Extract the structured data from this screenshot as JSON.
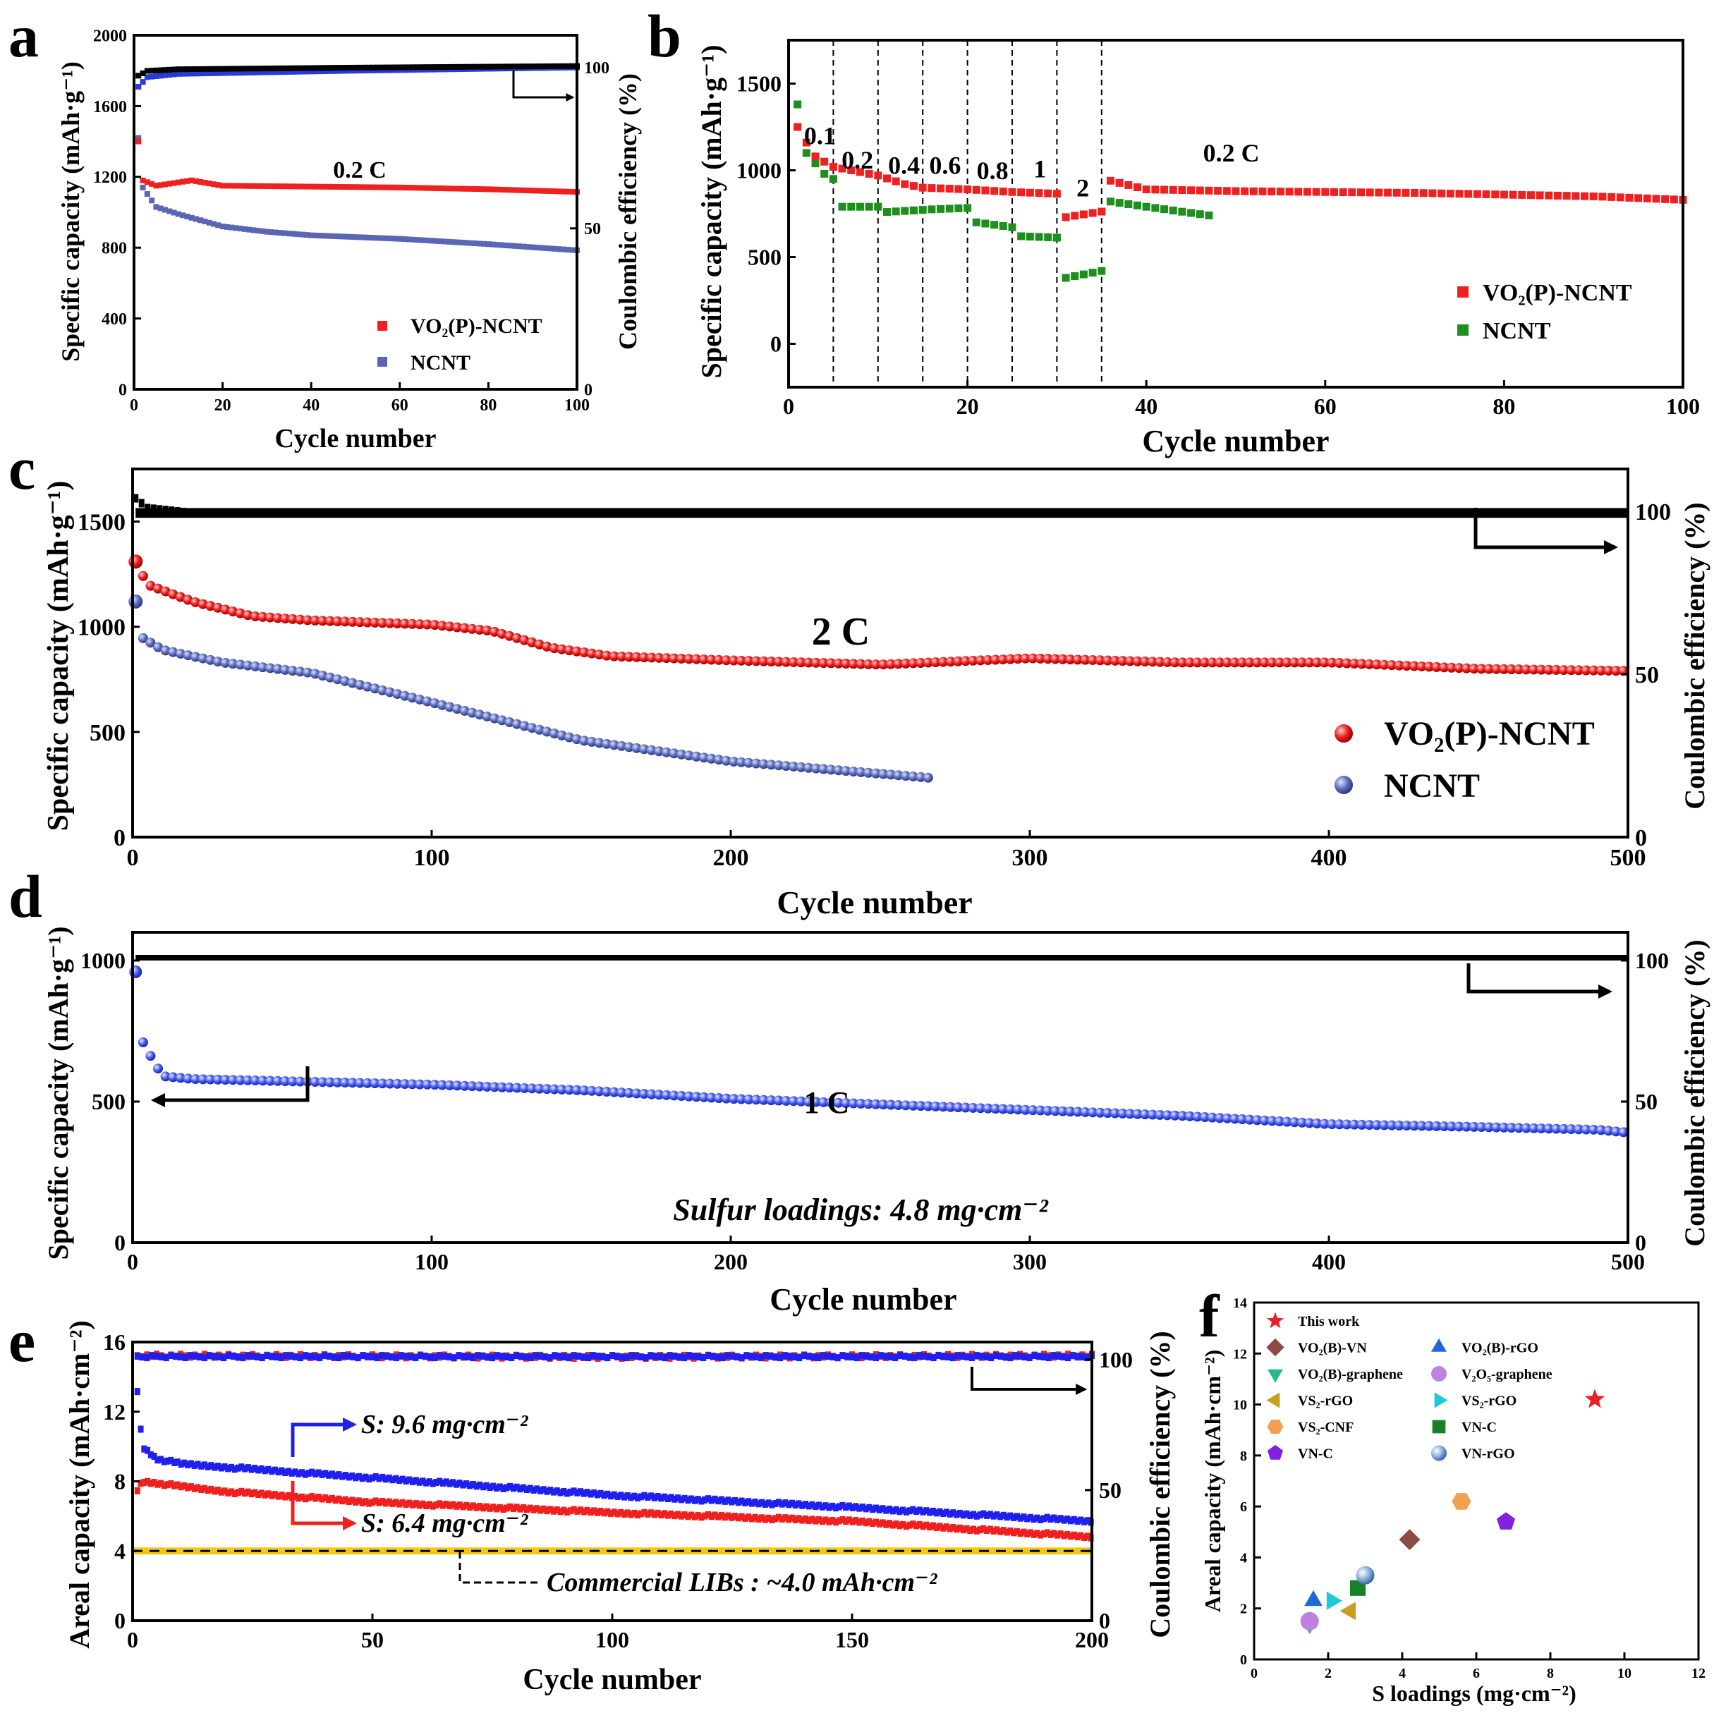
{
  "colors": {
    "red": "#f02020",
    "blue": "#2020ee",
    "navy": "#5a66b4",
    "green": "#1c8f1c",
    "black": "#000000",
    "gold": "#f2c811"
  },
  "chart_data": [
    {
      "id": "a",
      "type": "line",
      "panel_label": "a",
      "xlabel": "Cycle number",
      "ylabel": "Specific capacity (mAh·g⁻¹)",
      "y2label": "Coulombic efficiency (%)",
      "xlim": [
        0,
        100
      ],
      "ylim": [
        0,
        2000
      ],
      "y2lim": [
        0,
        110
      ],
      "xticks": [
        0,
        20,
        40,
        60,
        80,
        100
      ],
      "yticks": [
        0,
        400,
        800,
        1200,
        1600,
        2000
      ],
      "y2ticks": [
        0,
        50,
        100
      ],
      "annotation": "0.2 C",
      "legend": [
        "VO₂(P)-NCNT",
        "NCNT"
      ],
      "series": [
        {
          "name": "VO₂(P)-NCNT",
          "axis": "y",
          "x": [
            1,
            2,
            5,
            13,
            20,
            40,
            60,
            80,
            100
          ],
          "y": [
            1400,
            1180,
            1150,
            1180,
            1150,
            1145,
            1140,
            1130,
            1115
          ]
        },
        {
          "name": "NCNT",
          "axis": "y",
          "x": [
            1,
            2,
            5,
            10,
            20,
            30,
            40,
            60,
            80,
            100
          ],
          "y": [
            1420,
            1140,
            1030,
            990,
            920,
            890,
            870,
            850,
            820,
            785
          ]
        },
        {
          "name": "Coulombic efficiency (VO₂(P)-NCNT)",
          "axis": "y2",
          "x": [
            1,
            3,
            10,
            50,
            100
          ],
          "y": [
            97,
            98.5,
            99,
            99.5,
            100
          ]
        },
        {
          "name": "Coulombic efficiency (NCNT)",
          "axis": "y2",
          "x": [
            1,
            3,
            10,
            50,
            100
          ],
          "y": [
            94,
            97,
            98,
            99,
            100
          ]
        }
      ]
    },
    {
      "id": "b",
      "type": "scatter",
      "panel_label": "b",
      "xlabel": "Cycle number",
      "ylabel": "Specific capacity (mAh·g⁻¹)",
      "xlim": [
        0,
        100
      ],
      "ylim": [
        -250,
        1750
      ],
      "xticks": [
        0,
        20,
        40,
        60,
        80,
        100
      ],
      "yticks": [
        0,
        500,
        1000,
        1500
      ],
      "rate_labels": [
        "0.1",
        "0.2",
        "0.4",
        "0.6",
        "0.8",
        "1",
        "2",
        "0.2 C"
      ],
      "rate_boundaries": [
        5,
        10,
        15,
        20,
        25,
        30,
        35
      ],
      "legend": [
        "VO₂(P)-NCNT",
        "NCNT"
      ],
      "series": [
        {
          "name": "VO₂(P)-NCNT",
          "x": [
            1,
            2,
            3,
            4,
            5,
            8,
            10,
            13,
            15,
            20,
            25,
            30,
            31,
            35,
            36,
            40,
            50,
            70,
            90,
            100
          ],
          "y": [
            1250,
            1160,
            1080,
            1050,
            1020,
            990,
            970,
            920,
            900,
            890,
            875,
            865,
            730,
            760,
            940,
            890,
            880,
            870,
            850,
            830
          ]
        },
        {
          "name": "NCNT",
          "x": [
            1,
            2,
            3,
            4,
            5,
            6,
            10,
            11,
            15,
            20,
            21,
            25,
            26,
            30,
            31,
            35,
            36,
            40,
            47
          ],
          "y": [
            1380,
            1100,
            1040,
            980,
            950,
            790,
            790,
            760,
            760,
            780,
            700,
            670,
            620,
            610,
            380,
            420,
            820,
            790,
            740
          ]
        }
      ]
    },
    {
      "id": "c",
      "type": "scatter",
      "panel_label": "c",
      "xlabel": "Cycle number",
      "ylabel": "Specific capacity (mAh·g⁻¹)",
      "y2label": "Coulombic efficiency (%)",
      "xlim": [
        0,
        500
      ],
      "ylim": [
        0,
        1750
      ],
      "y2lim": [
        0,
        113
      ],
      "xticks": [
        0,
        100,
        200,
        300,
        400,
        500
      ],
      "yticks": [
        0,
        500,
        1000,
        1500
      ],
      "y2ticks": [
        0,
        50,
        100
      ],
      "annotation": "2 C",
      "legend": [
        "VO₂(P)-NCNT",
        "NCNT"
      ],
      "series": [
        {
          "name": "VO₂(P)-NCNT",
          "x": [
            1,
            5,
            20,
            40,
            60,
            100,
            120,
            140,
            160,
            200,
            250,
            300,
            350,
            400,
            450,
            500
          ],
          "y": [
            1310,
            1200,
            1120,
            1050,
            1030,
            1010,
            980,
            900,
            860,
            840,
            820,
            850,
            830,
            830,
            800,
            790
          ]
        },
        {
          "name": "NCNT",
          "x": [
            1,
            3,
            10,
            30,
            60,
            100,
            150,
            200,
            268
          ],
          "y": [
            1120,
            950,
            890,
            830,
            780,
            640,
            460,
            360,
            280
          ]
        },
        {
          "name": "Coulombic efficiency",
          "axis": "y2",
          "x": [
            1,
            5,
            20,
            100,
            150,
            300,
            500
          ],
          "y": [
            104,
            101,
            99.5,
            99,
            99,
            99.5,
            100
          ]
        }
      ]
    },
    {
      "id": "d",
      "type": "scatter",
      "panel_label": "d",
      "xlabel": "Cycle number",
      "ylabel": "Specific capacity (mAh·g⁻¹)",
      "y2label": "Coulombic efficiency (%)",
      "xlim": [
        0,
        500
      ],
      "ylim": [
        0,
        1100
      ],
      "y2lim": [
        0,
        110
      ],
      "xticks": [
        0,
        100,
        200,
        300,
        400,
        500
      ],
      "yticks": [
        0,
        500,
        1000
      ],
      "y2ticks": [
        0,
        50,
        100
      ],
      "annotation": "1 C",
      "note": "Sulfur loadings: 4.8  mg·cm⁻²",
      "series": [
        {
          "name": "Capacity",
          "x": [
            1,
            2,
            5,
            10,
            20,
            60,
            100,
            150,
            200,
            250,
            300,
            350,
            400,
            450,
            490,
            500
          ],
          "y": [
            960,
            740,
            680,
            590,
            580,
            570,
            560,
            540,
            510,
            490,
            470,
            450,
            420,
            410,
            400,
            390
          ]
        },
        {
          "name": "Coulombic efficiency",
          "axis": "y2",
          "x": [
            1,
            100,
            200,
            300,
            400,
            500
          ],
          "y": [
            101,
            101,
            101,
            101,
            101,
            101
          ]
        }
      ]
    },
    {
      "id": "e",
      "type": "scatter",
      "panel_label": "e",
      "xlabel": "Cycle number",
      "ylabel": "Areal capacity (mAh·cm⁻²)",
      "y2label": "Coulombic efficiency (%)",
      "xlim": [
        0,
        200
      ],
      "ylim": [
        0,
        16
      ],
      "y2lim": [
        0,
        106.7
      ],
      "xticks": [
        0,
        50,
        100,
        150,
        200
      ],
      "yticks": [
        0,
        4,
        8,
        12,
        16
      ],
      "y2ticks": [
        0,
        50,
        100
      ],
      "labels": [
        "S: 9.6 mg·cm⁻²",
        "S: 6.4 mg·cm⁻²",
        "Commercial LIBs : ~4.0  mAh·cm⁻²"
      ],
      "series": [
        {
          "name": "S: 9.6 mg·cm⁻²",
          "x": [
            1,
            2,
            5,
            10,
            20,
            50,
            100,
            150,
            200
          ],
          "y": [
            13.2,
            10,
            9.3,
            9.0,
            8.8,
            8.2,
            7.2,
            6.5,
            5.7
          ]
        },
        {
          "name": "S: 6.4 mg·cm⁻²",
          "x": [
            1,
            2,
            5,
            10,
            20,
            50,
            100,
            150,
            200
          ],
          "y": [
            7.5,
            8.0,
            7.9,
            7.7,
            7.4,
            6.8,
            6.2,
            5.7,
            4.8
          ]
        },
        {
          "name": "Coulombic efficiency (9.6)",
          "axis": "y2",
          "x": [
            1,
            100,
            200
          ],
          "y": [
            101,
            101,
            101
          ]
        },
        {
          "name": "Coulombic efficiency (6.4)",
          "axis": "y2",
          "x": [
            1,
            100,
            200
          ],
          "y": [
            101.5,
            101,
            101.5
          ]
        },
        {
          "name": "Commercial LIBs",
          "x": [
            0,
            200
          ],
          "y": [
            4,
            4
          ]
        }
      ]
    },
    {
      "id": "f",
      "type": "scatter",
      "panel_label": "f",
      "xlabel": "S loadings (mg·cm⁻²)",
      "ylabel": "Areal capacity (mAh·cm⁻²)",
      "xlim": [
        0,
        12
      ],
      "ylim": [
        0,
        14
      ],
      "xticks": [
        0,
        2,
        4,
        6,
        8,
        10,
        12
      ],
      "yticks": [
        0,
        2,
        4,
        6,
        8,
        10,
        12,
        14
      ],
      "points": [
        {
          "name": "This work",
          "x": 9.2,
          "y": 10.2,
          "marker": "star",
          "color": "#e8202a"
        },
        {
          "name": "VO₂(B)-VN",
          "x": 4.2,
          "y": 4.7,
          "marker": "diamond",
          "color": "#8b4a44"
        },
        {
          "name": "VO₂(B)-rGO",
          "x": 1.6,
          "y": 2.3,
          "marker": "triangle-up",
          "color": "#2068d8"
        },
        {
          "name": "VO₂(B)-graphene",
          "x": 1.5,
          "y": 1.4,
          "marker": "triangle-down",
          "color": "#28b890"
        },
        {
          "name": "V₂O₅-graphene",
          "x": 1.5,
          "y": 1.5,
          "marker": "circle",
          "color": "#c080e0"
        },
        {
          "name": "VS₂-rGO",
          "x": 2.6,
          "y": 1.9,
          "marker": "triangle-left",
          "color": "#c8a020"
        },
        {
          "name": "VS₂-rGO",
          "x": 2.1,
          "y": 2.3,
          "marker": "triangle-right",
          "color": "#20c8d8"
        },
        {
          "name": "VS₂-CNF",
          "x": 5.6,
          "y": 6.2,
          "marker": "hexagon",
          "color": "#f5a050"
        },
        {
          "name": "VN-C",
          "x": 2.8,
          "y": 2.8,
          "marker": "square",
          "color": "#188028"
        },
        {
          "name": "VN-C",
          "x": 6.8,
          "y": 5.4,
          "marker": "pentagon",
          "color": "#8020e0"
        },
        {
          "name": "VN-rGO",
          "x": 3.0,
          "y": 3.3,
          "marker": "sphere",
          "color": "#7fb0e0"
        }
      ]
    }
  ]
}
